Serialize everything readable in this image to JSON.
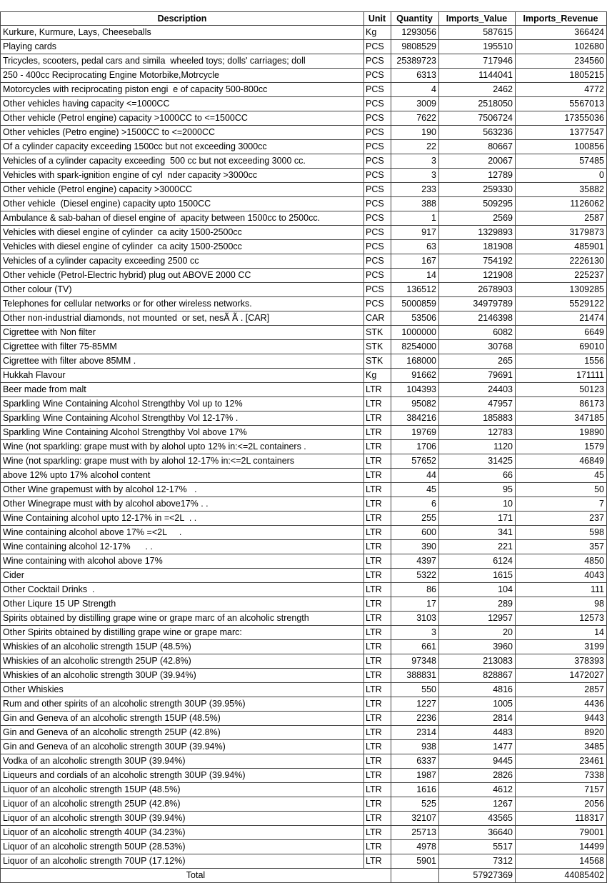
{
  "table": {
    "columns": [
      "Description",
      "Unit",
      "Quantity",
      "Imports_Value",
      "Imports_Revenue"
    ],
    "rows": [
      [
        "Kurkure, Kurmure, Lays, Cheeseballs",
        "Kg",
        1293056,
        587615,
        366424
      ],
      [
        "Playing cards",
        "PCS",
        9808529,
        195510,
        102680
      ],
      [
        "Tricycles, scooters, pedal cars and simila  wheeled toys; dolls' carriages; doll",
        "PCS",
        25389723,
        717946,
        234560
      ],
      [
        "250 - 400cc Reciprocating Engine Motorbike,Motrcycle",
        "PCS",
        6313,
        1144041,
        1805215
      ],
      [
        "Motorcycles with reciprocating piston engi  e of capacity 500-800cc",
        "PCS",
        4,
        2462,
        4772
      ],
      [
        "Other vehicles having capacity <=1000CC",
        "PCS",
        3009,
        2518050,
        5567013
      ],
      [
        "Other vehicle (Petrol engine) capacity >1000CC to <=1500CC",
        "PCS",
        7622,
        7506724,
        17355036
      ],
      [
        "Other vehicles (Petro engine) >1500CC to <=2000CC",
        "PCS",
        190,
        563236,
        1377547
      ],
      [
        "Of a cylinder capacity exceeding 1500cc but not exceeding 3000cc",
        "PCS",
        22,
        80667,
        100856
      ],
      [
        "Vehicles of a cylinder capacity exceeding  500 cc but not exceeding 3000 cc.",
        "PCS",
        3,
        20067,
        57485
      ],
      [
        "Vehicles with spark-ignition engine of cyl  nder capacity >3000cc",
        "PCS",
        3,
        12789,
        0
      ],
      [
        "Other vehicle (Petrol engine) capacity >3000CC",
        "PCS",
        233,
        259330,
        35882
      ],
      [
        "Other vehicle  (Diesel engine) capacity upto 1500CC",
        "PCS",
        388,
        509295,
        1126062
      ],
      [
        "Ambulance & sab-bahan of diesel engine of  apacity between 1500cc to 2500cc.",
        "PCS",
        1,
        2569,
        2587
      ],
      [
        "Vehicles with diesel engine of cylinder  ca acity 1500-2500cc",
        "PCS",
        917,
        1329893,
        3179873
      ],
      [
        "Vehicles with diesel engine of cylinder  ca acity 1500-2500cc",
        "PCS",
        63,
        181908,
        485901
      ],
      [
        "Vehicles of a cylinder capacity exceeding 2500 cc",
        "PCS",
        167,
        754192,
        2226130
      ],
      [
        "Other vehicle (Petrol-Electric hybrid) plug out ABOVE 2000 CC",
        "PCS",
        14,
        121908,
        225237
      ],
      [
        "Other colour (TV)",
        "PCS",
        136512,
        2678903,
        1309285
      ],
      [
        "Telephones for cellular networks or for other wireless networks.",
        "PCS",
        5000859,
        34979789,
        5529122
      ],
      [
        "Other non-industrial diamonds, not mounted  or set, nesÃ Ã . [CAR]",
        "CAR",
        53506,
        2146398,
        21474
      ],
      [
        "Cigrettee with Non filter",
        "STK",
        1000000,
        6082,
        6649
      ],
      [
        "Cigrettee with filter 75-85MM",
        "STK",
        8254000,
        30768,
        69010
      ],
      [
        "Cigrettee with filter above 85MM .",
        "STK",
        168000,
        265,
        1556
      ],
      [
        "Hukkah Flavour",
        "Kg",
        91662,
        79691,
        171111
      ],
      [
        "Beer made from malt",
        "LTR",
        104393,
        24403,
        50123
      ],
      [
        "Sparkling Wine Containing Alcohol Strengthby Vol up to 12%",
        "LTR",
        95082,
        47957,
        86173
      ],
      [
        "Sparkling Wine Containing Alcohol Strengthby Vol 12-17% .",
        "LTR",
        384216,
        185883,
        347185
      ],
      [
        "Sparkling Wine Containing Alcohol Strengthby Vol above 17%",
        "LTR",
        19769,
        12783,
        19890
      ],
      [
        "Wine (not sparkling: grape must with by alohol upto 12% in:<=2L containers .",
        "LTR",
        1706,
        1120,
        1579
      ],
      [
        "Wine (not sparkling: grape must with by alohol 12-17% in:<=2L containers",
        "LTR",
        57652,
        31425,
        46849
      ],
      [
        "above 12% upto 17% alcohol content",
        "LTR",
        44,
        66,
        45
      ],
      [
        "Other Wine grapemust with by alcohol 12-17%   .",
        "LTR",
        45,
        95,
        50
      ],
      [
        "Other Winegrape must with by alcohol above17% . .",
        "LTR",
        6,
        10,
        7
      ],
      [
        "Wine Containing alcohol upto 12-17% in =<2L  . .",
        "LTR",
        255,
        171,
        237
      ],
      [
        "Wine containing alcohol above 17% =<2L     .",
        "LTR",
        600,
        341,
        598
      ],
      [
        "Wine containing alcohol 12-17%      . .",
        "LTR",
        390,
        221,
        357
      ],
      [
        "Wine containing with alcohol above 17%",
        "LTR",
        4397,
        6124,
        4850
      ],
      [
        "Cider",
        "LTR",
        5322,
        1615,
        4043
      ],
      [
        "Other Cocktail Drinks  .",
        "LTR",
        86,
        104,
        111
      ],
      [
        "Other Liqure 15 UP Strength",
        "LTR",
        17,
        289,
        98
      ],
      [
        "Spirits obtained by distilling grape wine or grape marc of an alcoholic strength",
        "LTR",
        3103,
        12957,
        12573
      ],
      [
        "Other Spirits obtained by distilling grape wine or grape marc:",
        "LTR",
        3,
        20,
        14
      ],
      [
        "Whiskies of an alcoholic strength 15UP (48.5%)",
        "LTR",
        661,
        3960,
        3199
      ],
      [
        "Whiskies of an alcoholic strength 25UP (42.8%)",
        "LTR",
        97348,
        213083,
        378393
      ],
      [
        "Whiskies of an alcoholic strength 30UP (39.94%)",
        "LTR",
        388831,
        828867,
        1472027
      ],
      [
        "Other Whiskies",
        "LTR",
        550,
        4816,
        2857
      ],
      [
        "Rum and other spirits of an alcoholic strength 30UP (39.95%)",
        "LTR",
        1227,
        1005,
        4436
      ],
      [
        "Gin and Geneva of an alcoholic strength 15UP (48.5%)",
        "LTR",
        2236,
        2814,
        9443
      ],
      [
        "Gin and Geneva of an alcoholic strength 25UP (42.8%)",
        "LTR",
        2314,
        4483,
        8920
      ],
      [
        "Gin and Geneva of an alcoholic strength 30UP (39.94%)",
        "LTR",
        938,
        1477,
        3485
      ],
      [
        "Vodka of an alcoholic strength 30UP (39.94%)",
        "LTR",
        6337,
        9445,
        23461
      ],
      [
        "Liqueurs and cordials of an alcoholic strength 30UP (39.94%)",
        "LTR",
        1987,
        2826,
        7338
      ],
      [
        "Liquor of an alcoholic strength 15UP (48.5%)",
        "LTR",
        1616,
        4612,
        7157
      ],
      [
        "Liquor of an alcoholic strength 25UP (42.8%)",
        "LTR",
        525,
        1267,
        2056
      ],
      [
        "Liquor of an alcoholic strength 30UP (39.94%)",
        "LTR",
        32107,
        43565,
        118317
      ],
      [
        "Liquor of an alcoholic strength 40UP (34.23%)",
        "LTR",
        25713,
        36640,
        79001
      ],
      [
        "Liquor of an alcoholic strength 50UP (28.53%)",
        "LTR",
        4978,
        5517,
        14499
      ],
      [
        "Liquor of an alcoholic strength 70UP (17.12%)",
        "LTR",
        5901,
        7312,
        14568
      ]
    ],
    "total": {
      "label": "Total",
      "imports_value": 57927369,
      "imports_revenue": 44085402
    }
  }
}
